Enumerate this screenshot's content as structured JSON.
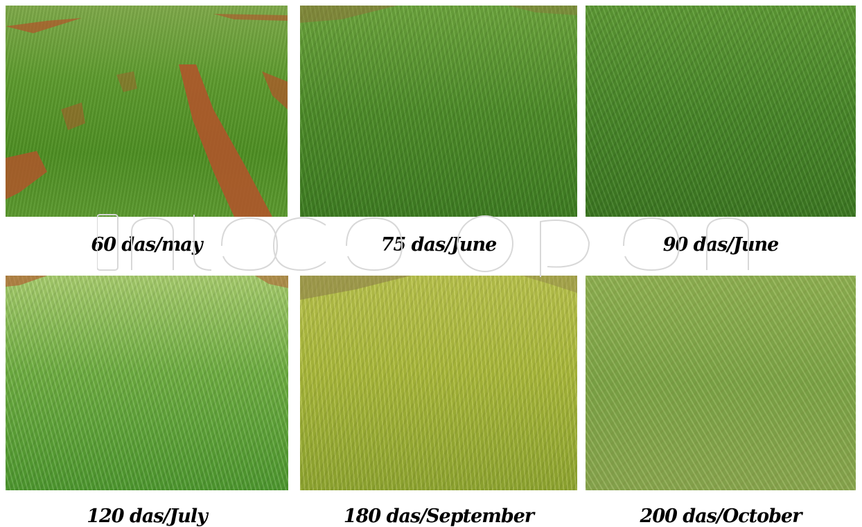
{
  "captions": {
    "c1": "60 das/may",
    "c2": "75 das/June",
    "c3": "90 das/June",
    "c4": "120 das/July",
    "c5": "180 das/September",
    "c6": "200 das/October"
  },
  "colors": {
    "caption_text": "#000000",
    "soil": "#b4522a",
    "grass_green": "#4e8f23",
    "grass_yellow": "#aab83c"
  }
}
